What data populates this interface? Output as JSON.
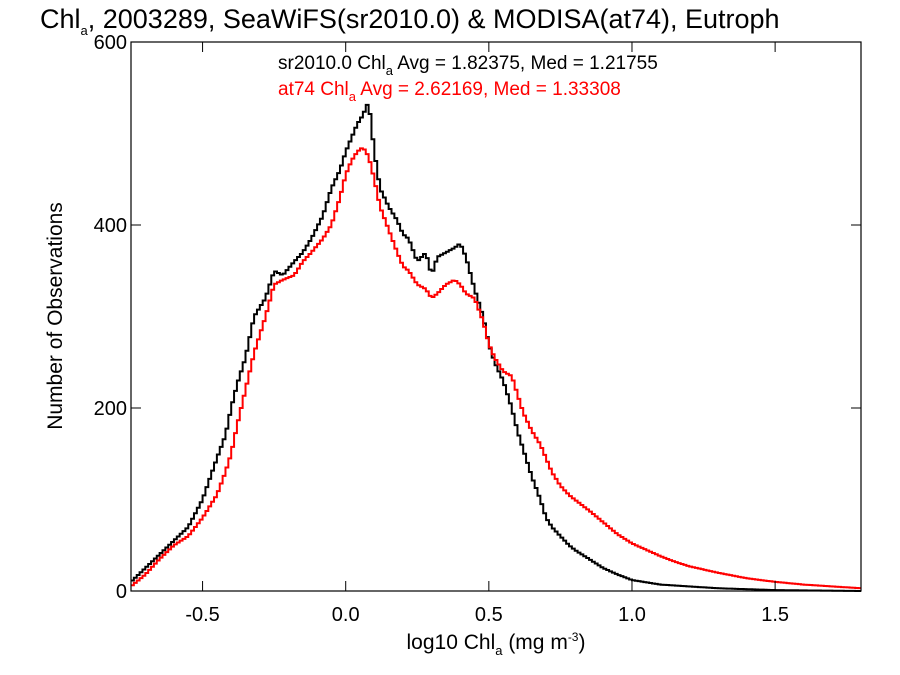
{
  "chart_data": {
    "type": "line",
    "title": {
      "pre": "Chl",
      "sub": "a",
      "post": ", 2003289, SeaWiFS(sr2010.0) & MODISA(at74), Eutroph"
    },
    "xlabel": {
      "pre": "log10 Chl",
      "sub": "a",
      "mid": " (mg m",
      "sup": "-3",
      "post": ")"
    },
    "ylabel": "Number of Observations",
    "xlim": [
      -0.75,
      1.8
    ],
    "ylim": [
      0,
      600
    ],
    "xticks": [
      "-0.5",
      "0.0",
      "0.5",
      "1.0",
      "1.5"
    ],
    "xtick_values": [
      -0.5,
      0.0,
      0.5,
      1.0,
      1.5
    ],
    "yticks": [
      "0",
      "200",
      "400",
      "600"
    ],
    "ytick_values": [
      0,
      200,
      400,
      600
    ],
    "legend_position": "top",
    "series": [
      {
        "name": "sr2010.0",
        "stats": {
          "pre": "sr2010.0 Chl",
          "sub": "a",
          "post": " Avg = 1.82375, Med = 1.21755"
        },
        "color": "#000000",
        "points": [
          [
            -0.75,
            10
          ],
          [
            -0.7,
            25
          ],
          [
            -0.65,
            40
          ],
          [
            -0.6,
            55
          ],
          [
            -0.55,
            70
          ],
          [
            -0.5,
            100
          ],
          [
            -0.45,
            145
          ],
          [
            -0.42,
            170
          ],
          [
            -0.4,
            200
          ],
          [
            -0.38,
            225
          ],
          [
            -0.35,
            255
          ],
          [
            -0.32,
            300
          ],
          [
            -0.28,
            320
          ],
          [
            -0.25,
            350
          ],
          [
            -0.22,
            345
          ],
          [
            -0.18,
            360
          ],
          [
            -0.15,
            370
          ],
          [
            -0.12,
            385
          ],
          [
            -0.08,
            410
          ],
          [
            -0.05,
            440
          ],
          [
            -0.02,
            460
          ],
          [
            0.0,
            480
          ],
          [
            0.02,
            495
          ],
          [
            0.04,
            510
          ],
          [
            0.06,
            520
          ],
          [
            0.08,
            535
          ],
          [
            0.1,
            480
          ],
          [
            0.12,
            440
          ],
          [
            0.15,
            420
          ],
          [
            0.18,
            405
          ],
          [
            0.2,
            390
          ],
          [
            0.22,
            385
          ],
          [
            0.25,
            360
          ],
          [
            0.28,
            370
          ],
          [
            0.3,
            345
          ],
          [
            0.32,
            365
          ],
          [
            0.35,
            370
          ],
          [
            0.38,
            375
          ],
          [
            0.4,
            380
          ],
          [
            0.42,
            365
          ],
          [
            0.45,
            330
          ],
          [
            0.48,
            300
          ],
          [
            0.5,
            270
          ],
          [
            0.52,
            250
          ],
          [
            0.55,
            230
          ],
          [
            0.58,
            200
          ],
          [
            0.6,
            175
          ],
          [
            0.62,
            155
          ],
          [
            0.65,
            125
          ],
          [
            0.68,
            100
          ],
          [
            0.7,
            80
          ],
          [
            0.72,
            70
          ],
          [
            0.75,
            60
          ],
          [
            0.78,
            50
          ],
          [
            0.8,
            45
          ],
          [
            0.85,
            35
          ],
          [
            0.9,
            25
          ],
          [
            0.95,
            18
          ],
          [
            1.0,
            12
          ],
          [
            1.1,
            7
          ],
          [
            1.2,
            5
          ],
          [
            1.3,
            3
          ],
          [
            1.4,
            2
          ],
          [
            1.5,
            1
          ],
          [
            1.8,
            0
          ]
        ]
      },
      {
        "name": "at74",
        "stats": {
          "pre": "at74 Chl",
          "sub": "a",
          "post": " Avg = 2.62169, Med = 1.33308"
        },
        "color": "#ff0000",
        "points": [
          [
            -0.75,
            5
          ],
          [
            -0.7,
            18
          ],
          [
            -0.65,
            35
          ],
          [
            -0.6,
            50
          ],
          [
            -0.55,
            60
          ],
          [
            -0.5,
            80
          ],
          [
            -0.45,
            105
          ],
          [
            -0.42,
            130
          ],
          [
            -0.4,
            150
          ],
          [
            -0.38,
            180
          ],
          [
            -0.35,
            220
          ],
          [
            -0.32,
            260
          ],
          [
            -0.28,
            300
          ],
          [
            -0.25,
            335
          ],
          [
            -0.22,
            340
          ],
          [
            -0.18,
            345
          ],
          [
            -0.15,
            360
          ],
          [
            -0.12,
            370
          ],
          [
            -0.08,
            385
          ],
          [
            -0.05,
            400
          ],
          [
            -0.02,
            430
          ],
          [
            0.0,
            455
          ],
          [
            0.02,
            470
          ],
          [
            0.04,
            480
          ],
          [
            0.06,
            485
          ],
          [
            0.08,
            475
          ],
          [
            0.1,
            450
          ],
          [
            0.12,
            420
          ],
          [
            0.15,
            395
          ],
          [
            0.18,
            370
          ],
          [
            0.2,
            355
          ],
          [
            0.22,
            350
          ],
          [
            0.25,
            335
          ],
          [
            0.28,
            330
          ],
          [
            0.3,
            320
          ],
          [
            0.32,
            325
          ],
          [
            0.35,
            335
          ],
          [
            0.38,
            340
          ],
          [
            0.4,
            335
          ],
          [
            0.42,
            325
          ],
          [
            0.45,
            320
          ],
          [
            0.48,
            295
          ],
          [
            0.5,
            270
          ],
          [
            0.52,
            255
          ],
          [
            0.55,
            240
          ],
          [
            0.58,
            235
          ],
          [
            0.6,
            215
          ],
          [
            0.62,
            195
          ],
          [
            0.65,
            175
          ],
          [
            0.68,
            160
          ],
          [
            0.7,
            145
          ],
          [
            0.72,
            130
          ],
          [
            0.75,
            115
          ],
          [
            0.78,
            105
          ],
          [
            0.8,
            100
          ],
          [
            0.85,
            88
          ],
          [
            0.9,
            75
          ],
          [
            0.95,
            62
          ],
          [
            1.0,
            52
          ],
          [
            1.05,
            45
          ],
          [
            1.1,
            38
          ],
          [
            1.15,
            32
          ],
          [
            1.2,
            27
          ],
          [
            1.3,
            20
          ],
          [
            1.4,
            14
          ],
          [
            1.5,
            10
          ],
          [
            1.6,
            7
          ],
          [
            1.7,
            5
          ],
          [
            1.8,
            3
          ]
        ]
      }
    ]
  }
}
